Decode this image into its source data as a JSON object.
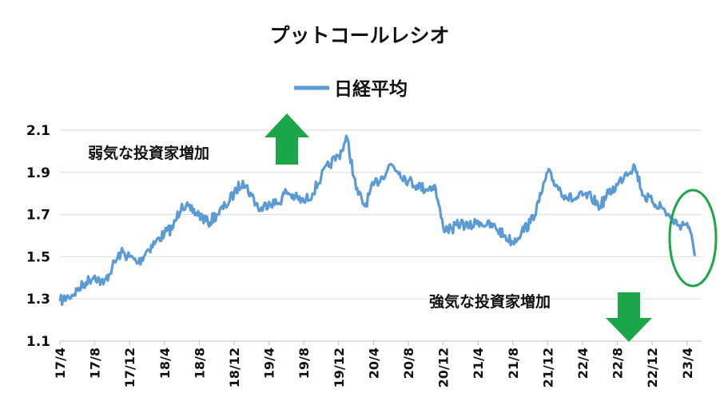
{
  "chart_data": {
    "type": "line",
    "title": "プットコールレシオ",
    "xlabel": "",
    "ylabel": "",
    "ylim": [
      1.1,
      2.1
    ],
    "yticks": [
      1.1,
      1.3,
      1.5,
      1.7,
      1.9,
      2.1
    ],
    "x_tick_labels": [
      "17/4",
      "17/8",
      "17/12",
      "18/4",
      "18/8",
      "18/12",
      "19/4",
      "19/8",
      "19/12",
      "20/4",
      "20/8",
      "20/12",
      "21/4",
      "21/8",
      "21/12",
      "22/4",
      "22/8",
      "22/12",
      "23/4"
    ],
    "grid": true,
    "legend_position": "top-center",
    "series": [
      {
        "name": "日経平均",
        "color": "#5b9bd5",
        "x": [
          "2017-04",
          "2017-05",
          "2017-06",
          "2017-07",
          "2017-08",
          "2017-09",
          "2017-10",
          "2017-11",
          "2017-12",
          "2018-01",
          "2018-02",
          "2018-03",
          "2018-04",
          "2018-05",
          "2018-06",
          "2018-07",
          "2018-08",
          "2018-09",
          "2018-10",
          "2018-11",
          "2018-12",
          "2019-01",
          "2019-02",
          "2019-03",
          "2019-04",
          "2019-05",
          "2019-06",
          "2019-07",
          "2019-08",
          "2019-09",
          "2019-10",
          "2019-11",
          "2019-12",
          "2020-01",
          "2020-02",
          "2020-03",
          "2020-04",
          "2020-05",
          "2020-06",
          "2020-07",
          "2020-08",
          "2020-09",
          "2020-10",
          "2020-11",
          "2020-12",
          "2021-01",
          "2021-02",
          "2021-03",
          "2021-04",
          "2021-05",
          "2021-06",
          "2021-07",
          "2021-08",
          "2021-09",
          "2021-10",
          "2021-11",
          "2021-12",
          "2022-01",
          "2022-02",
          "2022-03",
          "2022-04",
          "2022-05",
          "2022-06",
          "2022-07",
          "2022-08",
          "2022-09",
          "2022-10",
          "2022-11",
          "2022-12",
          "2023-01",
          "2023-02",
          "2023-03",
          "2023-04",
          "2023-05"
        ],
        "values": [
          1.29,
          1.31,
          1.34,
          1.38,
          1.41,
          1.37,
          1.45,
          1.52,
          1.5,
          1.47,
          1.53,
          1.57,
          1.61,
          1.64,
          1.75,
          1.72,
          1.7,
          1.66,
          1.7,
          1.74,
          1.8,
          1.86,
          1.79,
          1.72,
          1.76,
          1.75,
          1.81,
          1.78,
          1.76,
          1.8,
          1.88,
          1.94,
          1.98,
          2.06,
          1.82,
          1.74,
          1.84,
          1.88,
          1.94,
          1.9,
          1.86,
          1.84,
          1.82,
          1.84,
          1.64,
          1.63,
          1.66,
          1.64,
          1.67,
          1.65,
          1.64,
          1.6,
          1.57,
          1.62,
          1.66,
          1.76,
          1.9,
          1.84,
          1.79,
          1.77,
          1.79,
          1.78,
          1.74,
          1.8,
          1.84,
          1.9,
          1.93,
          1.79,
          1.76,
          1.74,
          1.69,
          1.65,
          1.66,
          1.51
        ]
      }
    ],
    "annotations": [
      {
        "text": "弱気な投資家増加",
        "arrow": "up",
        "arrow_color": "#1ca64a"
      },
      {
        "text": "強気な投資家増加",
        "arrow": "down",
        "arrow_color": "#1ca64a"
      }
    ],
    "highlight": {
      "shape": "ellipse",
      "color": "#1ca64a"
    }
  }
}
